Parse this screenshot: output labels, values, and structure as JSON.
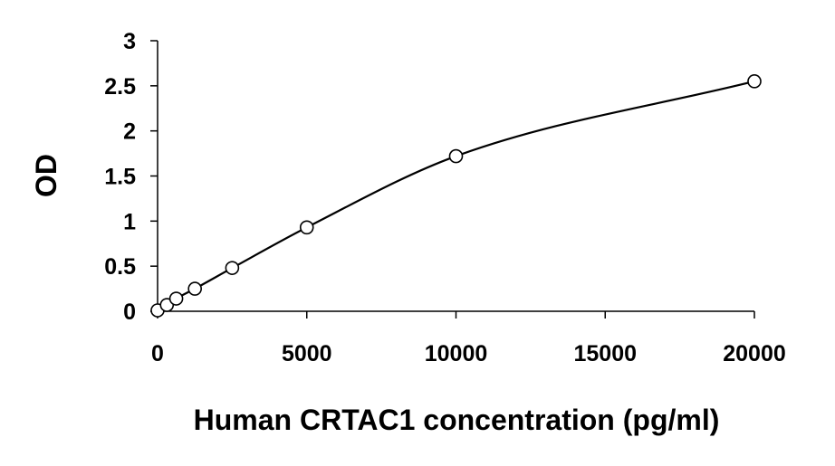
{
  "chart_data": {
    "type": "scatter",
    "title": "",
    "xlabel": "Human CRTAC1 concentration (pg/ml)",
    "ylabel": "OD",
    "xlim": [
      0,
      20000
    ],
    "ylim": [
      0,
      3
    ],
    "x_ticks": [
      0,
      5000,
      10000,
      15000,
      20000
    ],
    "y_ticks": [
      0,
      0.5,
      1,
      1.5,
      2,
      2.5,
      3
    ],
    "x_tick_labels": [
      "0",
      "5000",
      "10000",
      "15000",
      "20000"
    ],
    "y_tick_labels": [
      "0",
      "0.5",
      "1",
      "1.5",
      "2",
      "2.5",
      "3"
    ],
    "grid": false,
    "legend": "none",
    "series": [
      {
        "points": [
          {
            "x": 0,
            "y": 0.01
          },
          {
            "x": 312.5,
            "y": 0.07
          },
          {
            "x": 625,
            "y": 0.14
          },
          {
            "x": 1250,
            "y": 0.25
          },
          {
            "x": 2500,
            "y": 0.48
          },
          {
            "x": 5000,
            "y": 0.93
          },
          {
            "x": 10000,
            "y": 1.72
          },
          {
            "x": 20000,
            "y": 2.55
          }
        ],
        "fit_curve": true,
        "marker": "open-circle",
        "color": "#000000"
      }
    ]
  }
}
